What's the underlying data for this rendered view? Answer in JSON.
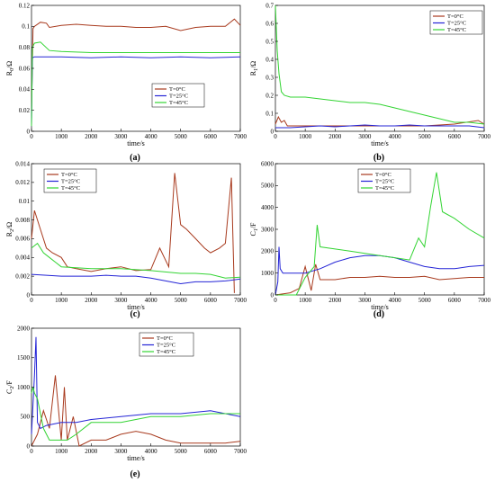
{
  "figure": {
    "legend_labels": [
      "T=0°C",
      "T=25°C",
      "T=45°C"
    ],
    "series_colors": [
      "#a83a1e",
      "#2424d6",
      "#33d433"
    ]
  },
  "chart_data": [
    {
      "id": "a",
      "type": "line",
      "panel_label": "(a)",
      "xlabel": "time/s",
      "ylabel": "R0/Ω",
      "ylabel_main": "R",
      "ylabel_sub": "0",
      "ylabel_unit": "/Ω",
      "xlim": [
        0,
        7000
      ],
      "ylim": [
        0,
        0.12
      ],
      "xticks": [
        0,
        1000,
        2000,
        3000,
        4000,
        5000,
        6000,
        7000
      ],
      "yticks": [
        0,
        0.02,
        0.04,
        0.06,
        0.08,
        0.1,
        0.12
      ],
      "ytick_labels": [
        "0",
        "0.02",
        "0.04",
        "0.06",
        "0.08",
        "0.1",
        "0.12"
      ],
      "legend": "top-right",
      "series": [
        {
          "name": "T=0°C",
          "x": [
            0,
            50,
            100,
            300,
            500,
            600,
            1000,
            1500,
            2000,
            2500,
            3000,
            3500,
            4000,
            4500,
            5000,
            5500,
            6000,
            6500,
            6800,
            7000
          ],
          "y": [
            0.02,
            0.098,
            0.1,
            0.104,
            0.103,
            0.099,
            0.101,
            0.102,
            0.101,
            0.1,
            0.1,
            0.099,
            0.099,
            0.1,
            0.096,
            0.099,
            0.1,
            0.1,
            0.107,
            0.101
          ]
        },
        {
          "name": "T=25°C",
          "x": [
            0,
            30,
            100,
            500,
            1000,
            2000,
            3000,
            4000,
            5000,
            6000,
            7000
          ],
          "y": [
            0.005,
            0.07,
            0.071,
            0.071,
            0.071,
            0.07,
            0.071,
            0.07,
            0.071,
            0.07,
            0.071
          ]
        },
        {
          "name": "T=45°C",
          "x": [
            0,
            30,
            100,
            300,
            600,
            1000,
            2000,
            3000,
            4000,
            5000,
            6000,
            7000
          ],
          "y": [
            0.005,
            0.08,
            0.084,
            0.085,
            0.077,
            0.076,
            0.075,
            0.075,
            0.075,
            0.075,
            0.075,
            0.075
          ]
        }
      ]
    },
    {
      "id": "b",
      "type": "line",
      "panel_label": "(b)",
      "xlabel": "time/s",
      "ylabel": "R1/Ω",
      "ylabel_main": "R",
      "ylabel_sub": "1",
      "ylabel_unit": "/Ω",
      "xlim": [
        0,
        7000
      ],
      "ylim": [
        0,
        0.7
      ],
      "xticks": [
        0,
        1000,
        2000,
        3000,
        4000,
        5000,
        6000,
        7000
      ],
      "yticks": [
        0,
        0.1,
        0.2,
        0.3,
        0.4,
        0.5,
        0.6,
        0.7
      ],
      "ytick_labels": [
        "0",
        "0.1",
        "0.2",
        "0.3",
        "0.4",
        "0.5",
        "0.6",
        "0.7"
      ],
      "legend": "top-right",
      "series": [
        {
          "name": "T=0°C",
          "x": [
            0,
            100,
            200,
            300,
            400,
            600,
            1000,
            2000,
            3000,
            4000,
            5000,
            6000,
            6800,
            7000
          ],
          "y": [
            0.04,
            0.08,
            0.05,
            0.06,
            0.03,
            0.03,
            0.03,
            0.03,
            0.03,
            0.03,
            0.03,
            0.04,
            0.06,
            0.04
          ]
        },
        {
          "name": "T=25°C",
          "x": [
            0,
            500,
            1000,
            1500,
            2000,
            2500,
            3000,
            3500,
            4000,
            4500,
            5000,
            5500,
            6000,
            6500,
            7000
          ],
          "y": [
            0.02,
            0.02,
            0.025,
            0.03,
            0.025,
            0.03,
            0.035,
            0.03,
            0.03,
            0.035,
            0.03,
            0.03,
            0.03,
            0.03,
            0.02
          ]
        },
        {
          "name": "T=45°C",
          "x": [
            0,
            60,
            120,
            200,
            300,
            500,
            1000,
            1500,
            2000,
            2500,
            3000,
            3500,
            4000,
            4500,
            5000,
            5500,
            6000,
            6500,
            7000
          ],
          "y": [
            0.7,
            0.45,
            0.32,
            0.22,
            0.2,
            0.19,
            0.19,
            0.18,
            0.17,
            0.16,
            0.16,
            0.15,
            0.13,
            0.11,
            0.09,
            0.07,
            0.05,
            0.05,
            0.04
          ]
        }
      ]
    },
    {
      "id": "c",
      "type": "line",
      "panel_label": "(c)",
      "xlabel": "time/s",
      "ylabel": "R2/Ω",
      "ylabel_main": "R",
      "ylabel_sub": "2",
      "ylabel_unit": "/Ω",
      "xlim": [
        0,
        7000
      ],
      "ylim": [
        0,
        0.014
      ],
      "xticks": [
        0,
        1000,
        2000,
        3000,
        4000,
        5000,
        6000,
        7000
      ],
      "yticks": [
        0,
        0.002,
        0.004,
        0.006,
        0.008,
        0.01,
        0.012,
        0.014
      ],
      "ytick_labels": [
        "0",
        "0.002",
        "0.004",
        "0.006",
        "0.008",
        "0.01",
        "0.012",
        "0.014"
      ],
      "legend": "top-center",
      "series": [
        {
          "name": "T=0°C",
          "x": [
            0,
            100,
            300,
            500,
            700,
            1000,
            1200,
            1500,
            2000,
            2500,
            3000,
            3500,
            4000,
            4300,
            4600,
            4800,
            5000,
            5200,
            5500,
            5800,
            6000,
            6300,
            6500,
            6700,
            6800
          ],
          "y": [
            0.006,
            0.009,
            0.007,
            0.005,
            0.0045,
            0.004,
            0.003,
            0.0028,
            0.0025,
            0.0028,
            0.003,
            0.0026,
            0.0027,
            0.005,
            0.003,
            0.013,
            0.0075,
            0.007,
            0.006,
            0.005,
            0.0045,
            0.005,
            0.0055,
            0.0125,
            0.0002
          ]
        },
        {
          "name": "T=25°C",
          "x": [
            0,
            500,
            1000,
            1500,
            2000,
            2500,
            3000,
            3500,
            4000,
            4500,
            5000,
            5500,
            6000,
            6500,
            7000
          ],
          "y": [
            0.0022,
            0.0021,
            0.002,
            0.002,
            0.002,
            0.0021,
            0.002,
            0.002,
            0.0018,
            0.0015,
            0.0012,
            0.0014,
            0.0014,
            0.0015,
            0.0017
          ]
        },
        {
          "name": "T=45°C",
          "x": [
            0,
            200,
            400,
            600,
            800,
            1000,
            2000,
            3000,
            4000,
            5000,
            5500,
            6000,
            6500,
            7000
          ],
          "y": [
            0.005,
            0.0055,
            0.0045,
            0.004,
            0.0035,
            0.003,
            0.0028,
            0.0028,
            0.0026,
            0.0023,
            0.0023,
            0.0022,
            0.0018,
            0.0019
          ]
        }
      ]
    },
    {
      "id": "d",
      "type": "line",
      "panel_label": "(d)",
      "xlabel": "time/s",
      "ylabel": "C1/F",
      "ylabel_main": "C",
      "ylabel_sub": "1",
      "ylabel_unit": "/F",
      "xlim": [
        0,
        7000
      ],
      "ylim": [
        0,
        6000
      ],
      "xticks": [
        0,
        1000,
        2000,
        3000,
        4000,
        5000,
        6000,
        7000
      ],
      "yticks": [
        0,
        1000,
        2000,
        3000,
        4000,
        5000,
        6000
      ],
      "ytick_labels": [
        "0",
        "1000",
        "2000",
        "3000",
        "4000",
        "5000",
        "6000"
      ],
      "legend": "top-center",
      "series": [
        {
          "name": "T=0°C",
          "x": [
            0,
            500,
            800,
            1000,
            1200,
            1350,
            1500,
            2000,
            2500,
            3000,
            3500,
            4000,
            4500,
            5000,
            5500,
            6000,
            6500,
            7000
          ],
          "y": [
            0,
            100,
            300,
            1300,
            200,
            1400,
            700,
            700,
            800,
            800,
            850,
            800,
            800,
            850,
            700,
            750,
            800,
            800
          ]
        },
        {
          "name": "T=25°C",
          "x": [
            0,
            80,
            120,
            160,
            250,
            500,
            1000,
            1500,
            2000,
            2500,
            3000,
            3500,
            4000,
            4500,
            5000,
            5500,
            6000,
            6500,
            7000
          ],
          "y": [
            0,
            600,
            2200,
            1200,
            1000,
            1000,
            1000,
            1200,
            1500,
            1700,
            1800,
            1800,
            1700,
            1500,
            1300,
            1200,
            1200,
            1300,
            1350
          ]
        },
        {
          "name": "T=45°C",
          "x": [
            0,
            700,
            1000,
            1300,
            1400,
            1500,
            2000,
            2500,
            3000,
            3500,
            4000,
            4500,
            4800,
            5000,
            5200,
            5400,
            5600,
            6000,
            6500,
            7000
          ],
          "y": [
            0,
            0,
            800,
            1300,
            3200,
            2200,
            2100,
            2000,
            1900,
            1800,
            1700,
            1600,
            2600,
            2200,
            4000,
            5600,
            3800,
            3500,
            3000,
            2600
          ]
        }
      ]
    },
    {
      "id": "e",
      "type": "line",
      "panel_label": "(e)",
      "xlabel": "time/s",
      "ylabel": "C2/F",
      "ylabel_main": "C",
      "ylabel_sub": "2",
      "ylabel_unit": "/F",
      "xlim": [
        0,
        7000
      ],
      "ylim": [
        0,
        2000
      ],
      "xticks": [
        0,
        1000,
        2000,
        3000,
        4000,
        5000,
        6000,
        7000
      ],
      "yticks": [
        0,
        500,
        1000,
        1500,
        2000
      ],
      "ytick_labels": [
        "0",
        "500",
        "1000",
        "1500",
        "2000"
      ],
      "legend": "top-right",
      "series": [
        {
          "name": "T=0°C",
          "x": [
            0,
            200,
            400,
            600,
            800,
            1000,
            1100,
            1200,
            1400,
            1600,
            2000,
            2500,
            3000,
            3500,
            4000,
            4500,
            5000,
            5500,
            6000,
            6500,
            7000
          ],
          "y": [
            0,
            200,
            600,
            300,
            1200,
            100,
            1000,
            100,
            500,
            0,
            100,
            100,
            200,
            250,
            200,
            100,
            50,
            50,
            50,
            50,
            80
          ]
        },
        {
          "name": "T=25°C",
          "x": [
            0,
            100,
            150,
            200,
            300,
            500,
            1000,
            1500,
            2000,
            3000,
            4000,
            5000,
            6000,
            6500,
            7000
          ],
          "y": [
            200,
            1200,
            1850,
            400,
            300,
            350,
            400,
            400,
            450,
            500,
            550,
            550,
            600,
            550,
            500
          ]
        },
        {
          "name": "T=45°C",
          "x": [
            0,
            50,
            100,
            200,
            400,
            600,
            800,
            1000,
            1200,
            1500,
            2000,
            3000,
            4000,
            5000,
            6000,
            7000
          ],
          "y": [
            900,
            1000,
            900,
            800,
            300,
            100,
            100,
            100,
            100,
            200,
            400,
            400,
            500,
            500,
            550,
            550
          ]
        }
      ]
    }
  ]
}
